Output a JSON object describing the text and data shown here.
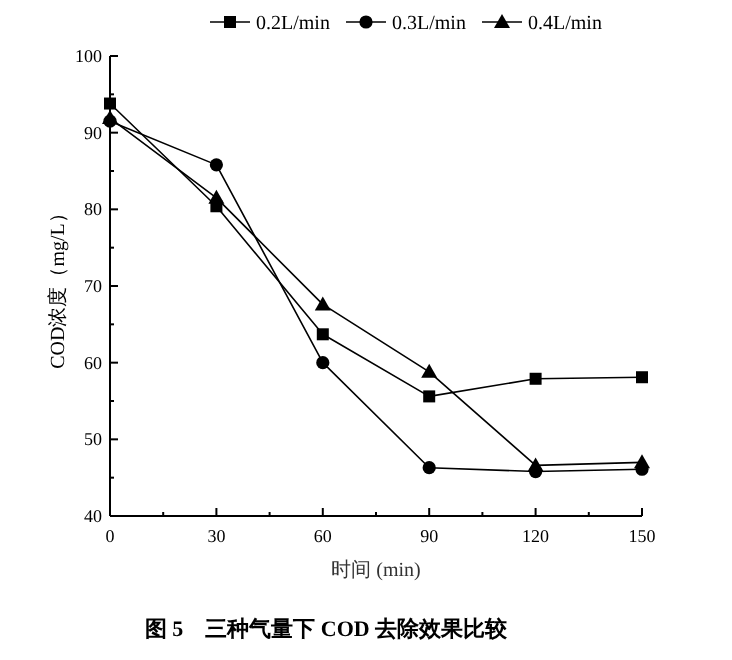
{
  "chart_data": {
    "type": "line",
    "xlabel": "时间 (min)",
    "ylabel": "COD浓度（mg/L）",
    "annotations": [
      "图 5　三种气量下 COD 去除效果比较"
    ],
    "x": [
      0,
      30,
      60,
      90,
      120,
      150
    ],
    "series": [
      {
        "name": "0.2L/min",
        "color": "#000000",
        "marker": "square",
        "values": [
          93.8,
          80.4,
          63.7,
          55.6,
          57.9,
          58.1
        ]
      },
      {
        "name": "0.3L/min",
        "color": "#000000",
        "marker": "circle",
        "values": [
          91.5,
          85.8,
          60.0,
          46.3,
          45.8,
          46.1
        ]
      },
      {
        "name": "0.4L/min",
        "color": "#000000",
        "marker": "triangle",
        "values": [
          91.9,
          81.5,
          67.6,
          58.8,
          46.6,
          47.0
        ]
      }
    ],
    "xlim": [
      0,
      150
    ],
    "xticks": [
      0,
      {
        "value": 15,
        "label": null
      },
      30,
      {
        "value": 45,
        "label": null
      },
      60,
      {
        "value": 75,
        "label": null
      },
      90,
      {
        "value": 105,
        "label": null
      },
      120,
      {
        "value": 135,
        "label": null
      },
      150
    ],
    "ylim": [
      40,
      100
    ],
    "yticks": [
      40,
      {
        "value": 45,
        "label": null
      },
      50,
      {
        "value": 55,
        "label": null
      },
      60,
      {
        "value": 65,
        "label": null
      },
      70,
      {
        "value": 75,
        "label": null
      },
      80,
      {
        "value": 85,
        "label": null
      },
      90,
      {
        "value": 95,
        "label": null
      },
      100
    ],
    "grid": false,
    "legend": "top",
    "line_style": "solid"
  }
}
